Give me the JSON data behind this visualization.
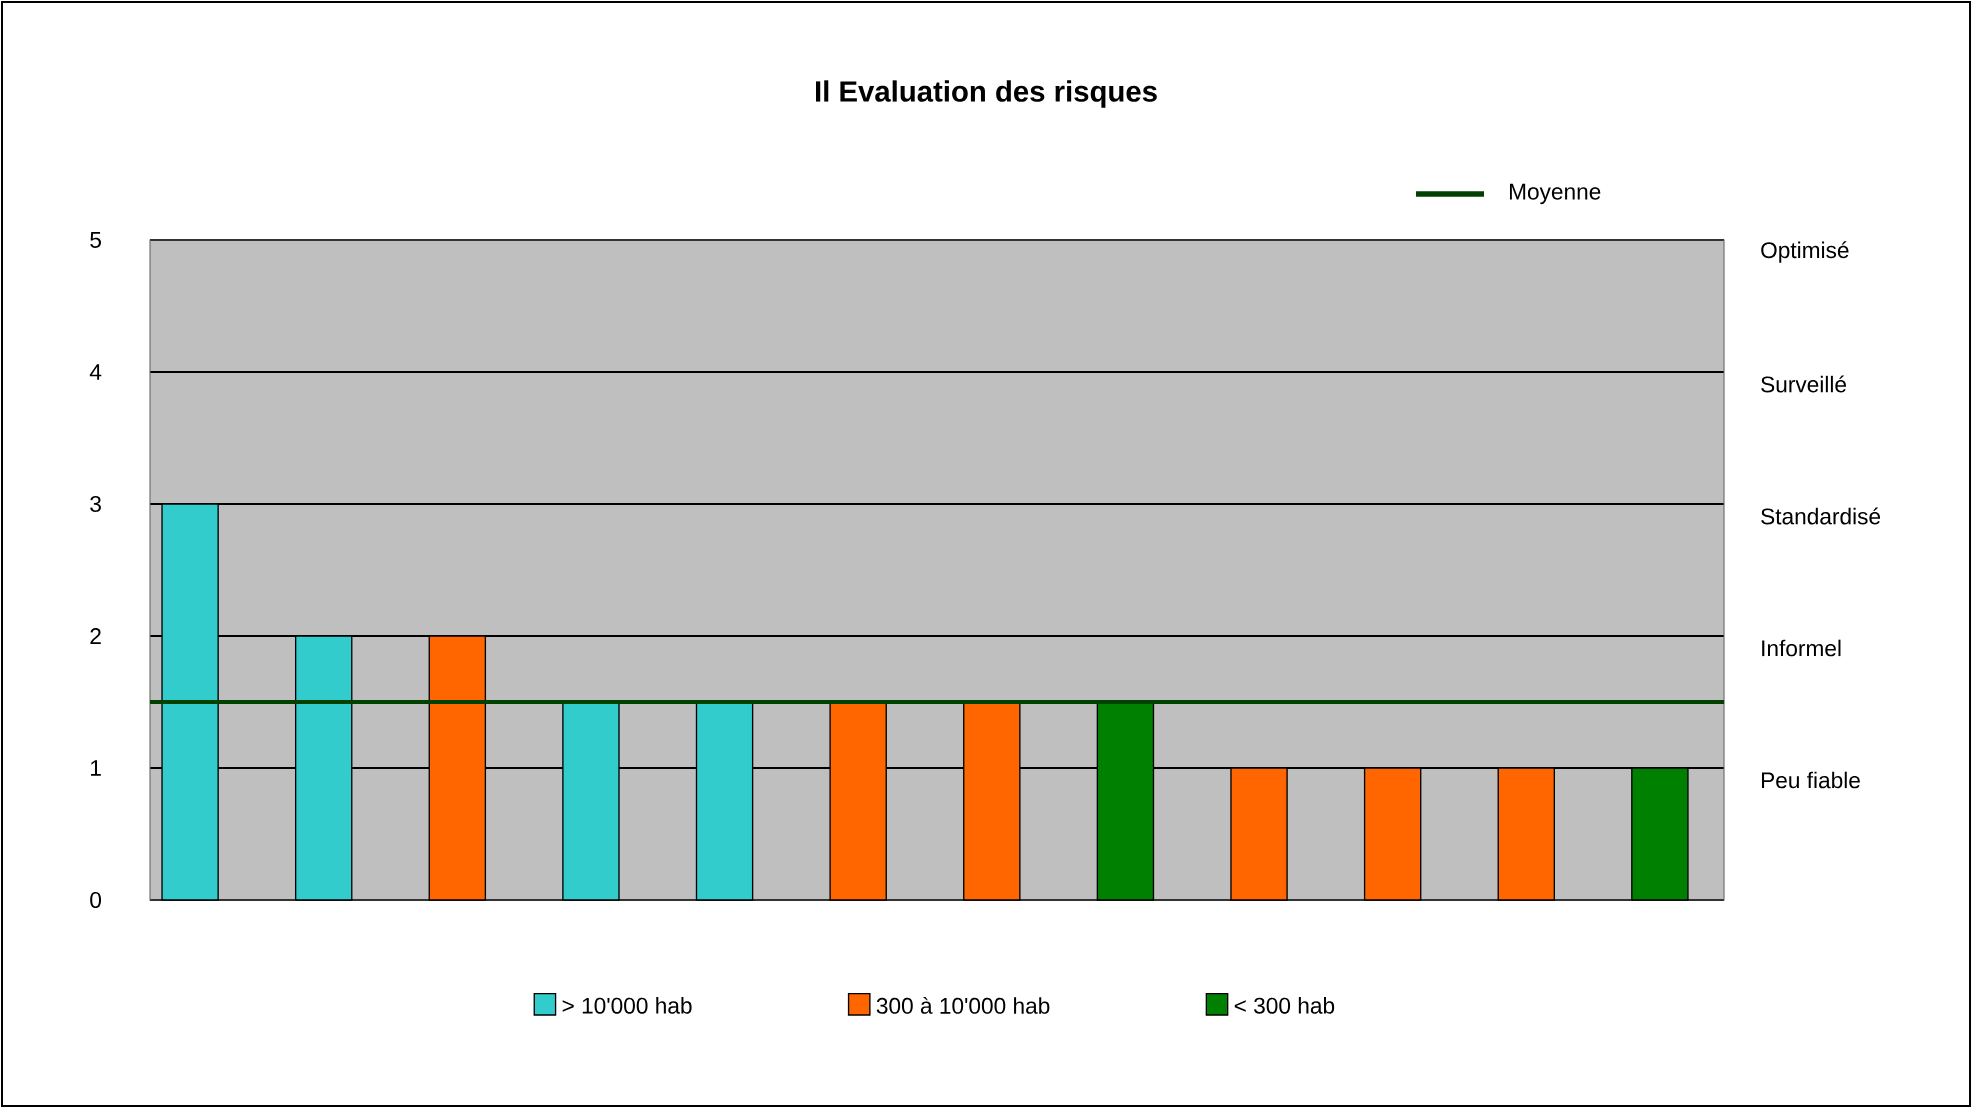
{
  "chart_data": {
    "type": "bar",
    "title": "Il Evaluation des risques",
    "categories": [
      null,
      null,
      null,
      null,
      null,
      null,
      null,
      null,
      null,
      null,
      null,
      null
    ],
    "series": [
      {
        "name": "> 10'000 hab",
        "color": "#33cccc",
        "values": [
          3,
          2,
          null,
          1.5,
          1.5,
          null,
          null,
          null,
          null,
          null,
          null,
          null
        ]
      },
      {
        "name": "300 à 10'000 hab",
        "color": "#ff6600",
        "values": [
          null,
          null,
          2,
          null,
          null,
          1.5,
          1.5,
          null,
          1,
          1,
          1,
          null
        ]
      },
      {
        "name": "< 300 hab",
        "color": "#008000",
        "values": [
          null,
          null,
          null,
          null,
          null,
          null,
          null,
          1.5,
          null,
          null,
          null,
          1
        ]
      }
    ],
    "ylim": [
      0,
      5
    ],
    "yticks": [
      0,
      1,
      2,
      3,
      4,
      5
    ],
    "annotations": [
      "Optimisé",
      "Surveillé",
      "Standardisé",
      "Informel",
      "Peu fiable"
    ],
    "ref_lines": [
      {
        "axis": "y",
        "value": 1.5,
        "label": "Moyenne",
        "color": "#004000"
      }
    ],
    "grid": "y",
    "legend": "bottom"
  }
}
